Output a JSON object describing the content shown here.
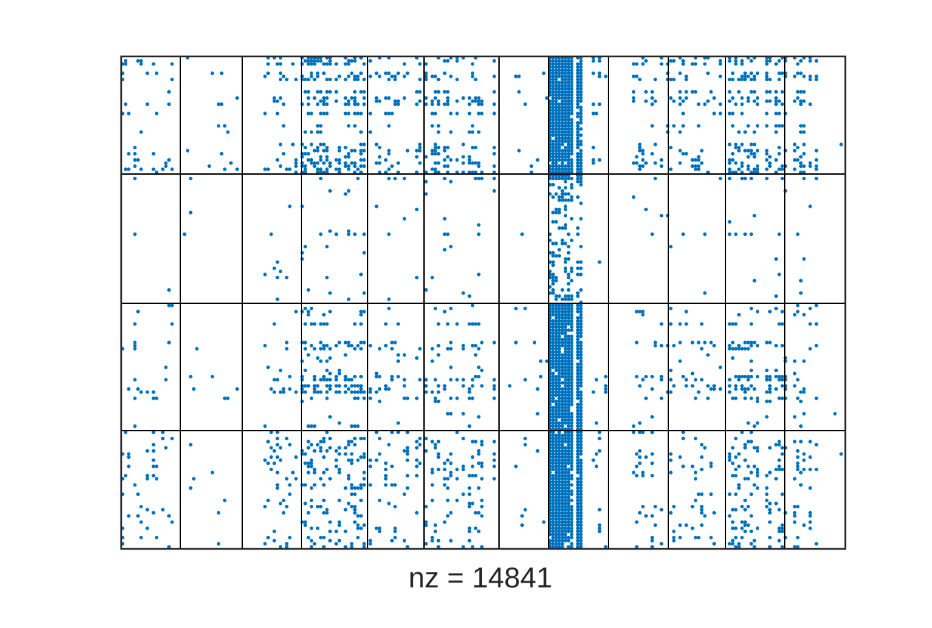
{
  "chart_data": {
    "type": "spy",
    "xlabel": "nz = 14841",
    "color": "#0072bd"
  }
}
